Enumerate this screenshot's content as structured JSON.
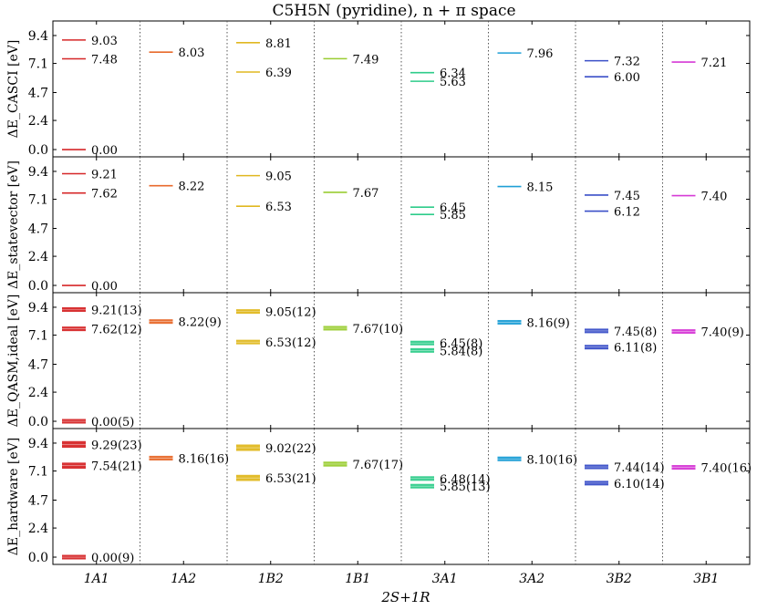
{
  "title": "C5H5N (pyridine), n + π space",
  "xlabel": "2S+1R",
  "chart_data": {
    "type": "level-diagram",
    "title": "C5H5N (pyridine), n + π space",
    "categories": [
      "1A1",
      "1A2",
      "1B2",
      "1B1",
      "3A1",
      "3A2",
      "3B2",
      "3B1"
    ],
    "category_colors": [
      "#d62728",
      "#e86a2c",
      "#e0b820",
      "#9acd32",
      "#2ecc8a",
      "#1f9fd6",
      "#3a4fc8",
      "#d63ad6"
    ],
    "ytick_values": [
      0.0,
      2.4,
      4.7,
      7.1,
      9.4
    ],
    "ytick_labels": [
      "0.0",
      "2.4",
      "4.7",
      "7.1",
      "9.4"
    ],
    "ylim": [
      -0.6,
      10.6
    ],
    "panels": [
      {
        "ylabel": "ΔE_CASCI [eV]",
        "kind": "exact",
        "levels": [
          {
            "cat": 0,
            "value": 9.03,
            "label": "9.03"
          },
          {
            "cat": 0,
            "value": 7.48,
            "label": "7.48"
          },
          {
            "cat": 0,
            "value": 0.0,
            "label": "0.00"
          },
          {
            "cat": 1,
            "value": 8.03,
            "label": "8.03"
          },
          {
            "cat": 2,
            "value": 8.81,
            "label": "8.81"
          },
          {
            "cat": 2,
            "value": 6.39,
            "label": "6.39"
          },
          {
            "cat": 3,
            "value": 7.49,
            "label": "7.49"
          },
          {
            "cat": 4,
            "value": 6.34,
            "label": "6.34"
          },
          {
            "cat": 4,
            "value": 5.63,
            "label": "5.63"
          },
          {
            "cat": 5,
            "value": 7.96,
            "label": "7.96"
          },
          {
            "cat": 6,
            "value": 7.32,
            "label": "7.32"
          },
          {
            "cat": 6,
            "value": 6.0,
            "label": "6.00"
          },
          {
            "cat": 7,
            "value": 7.21,
            "label": "7.21"
          }
        ]
      },
      {
        "ylabel": "ΔE_statevector [eV]",
        "kind": "exact",
        "levels": [
          {
            "cat": 0,
            "value": 9.21,
            "label": "9.21"
          },
          {
            "cat": 0,
            "value": 7.62,
            "label": "7.62"
          },
          {
            "cat": 0,
            "value": 0.0,
            "label": "0.00"
          },
          {
            "cat": 1,
            "value": 8.22,
            "label": "8.22"
          },
          {
            "cat": 2,
            "value": 9.05,
            "label": "9.05"
          },
          {
            "cat": 2,
            "value": 6.53,
            "label": "6.53"
          },
          {
            "cat": 3,
            "value": 7.67,
            "label": "7.67"
          },
          {
            "cat": 4,
            "value": 6.45,
            "label": "6.45"
          },
          {
            "cat": 4,
            "value": 5.85,
            "label": "5.85"
          },
          {
            "cat": 5,
            "value": 8.15,
            "label": "8.15"
          },
          {
            "cat": 6,
            "value": 7.45,
            "label": "7.45"
          },
          {
            "cat": 6,
            "value": 6.12,
            "label": "6.12"
          },
          {
            "cat": 7,
            "value": 7.4,
            "label": "7.40"
          }
        ]
      },
      {
        "ylabel": "ΔE_QASM,ideal [eV]",
        "kind": "band",
        "levels": [
          {
            "cat": 0,
            "value": 9.21,
            "err": 0.13,
            "label": "9.21(13)"
          },
          {
            "cat": 0,
            "value": 7.62,
            "err": 0.12,
            "label": "7.62(12)"
          },
          {
            "cat": 0,
            "value": 0.0,
            "err": 0.05,
            "label": "0.00(5)"
          },
          {
            "cat": 1,
            "value": 8.22,
            "err": 0.09,
            "label": "8.22(9)"
          },
          {
            "cat": 2,
            "value": 9.05,
            "err": 0.12,
            "label": "9.05(12)"
          },
          {
            "cat": 2,
            "value": 6.53,
            "err": 0.12,
            "label": "6.53(12)"
          },
          {
            "cat": 3,
            "value": 7.67,
            "err": 0.1,
            "label": "7.67(10)"
          },
          {
            "cat": 4,
            "value": 6.45,
            "err": 0.08,
            "label": "6.45(8)"
          },
          {
            "cat": 4,
            "value": 5.84,
            "err": 0.08,
            "label": "5.84(8)"
          },
          {
            "cat": 5,
            "value": 8.16,
            "err": 0.09,
            "label": "8.16(9)"
          },
          {
            "cat": 6,
            "value": 7.45,
            "err": 0.08,
            "label": "7.45(8)"
          },
          {
            "cat": 6,
            "value": 6.11,
            "err": 0.08,
            "label": "6.11(8)"
          },
          {
            "cat": 7,
            "value": 7.4,
            "err": 0.09,
            "label": "7.40(9)"
          }
        ]
      },
      {
        "ylabel": "ΔE_hardware [eV]",
        "kind": "band",
        "levels": [
          {
            "cat": 0,
            "value": 9.29,
            "err": 0.23,
            "label": "9.29(23)"
          },
          {
            "cat": 0,
            "value": 7.54,
            "err": 0.21,
            "label": "7.54(21)"
          },
          {
            "cat": 0,
            "value": 0.0,
            "err": 0.09,
            "label": "0.00(9)"
          },
          {
            "cat": 1,
            "value": 8.16,
            "err": 0.16,
            "label": "8.16(16)"
          },
          {
            "cat": 2,
            "value": 9.02,
            "err": 0.22,
            "label": "9.02(22)"
          },
          {
            "cat": 2,
            "value": 6.53,
            "err": 0.21,
            "label": "6.53(21)"
          },
          {
            "cat": 3,
            "value": 7.67,
            "err": 0.17,
            "label": "7.67(17)"
          },
          {
            "cat": 4,
            "value": 6.48,
            "err": 0.14,
            "label": "6.48(14)"
          },
          {
            "cat": 4,
            "value": 5.85,
            "err": 0.13,
            "label": "5.85(13)"
          },
          {
            "cat": 5,
            "value": 8.1,
            "err": 0.16,
            "label": "8.10(16)"
          },
          {
            "cat": 6,
            "value": 7.44,
            "err": 0.14,
            "label": "7.44(14)"
          },
          {
            "cat": 6,
            "value": 6.1,
            "err": 0.14,
            "label": "6.10(14)"
          },
          {
            "cat": 7,
            "value": 7.4,
            "err": 0.16,
            "label": "7.40(16)"
          }
        ]
      }
    ]
  }
}
